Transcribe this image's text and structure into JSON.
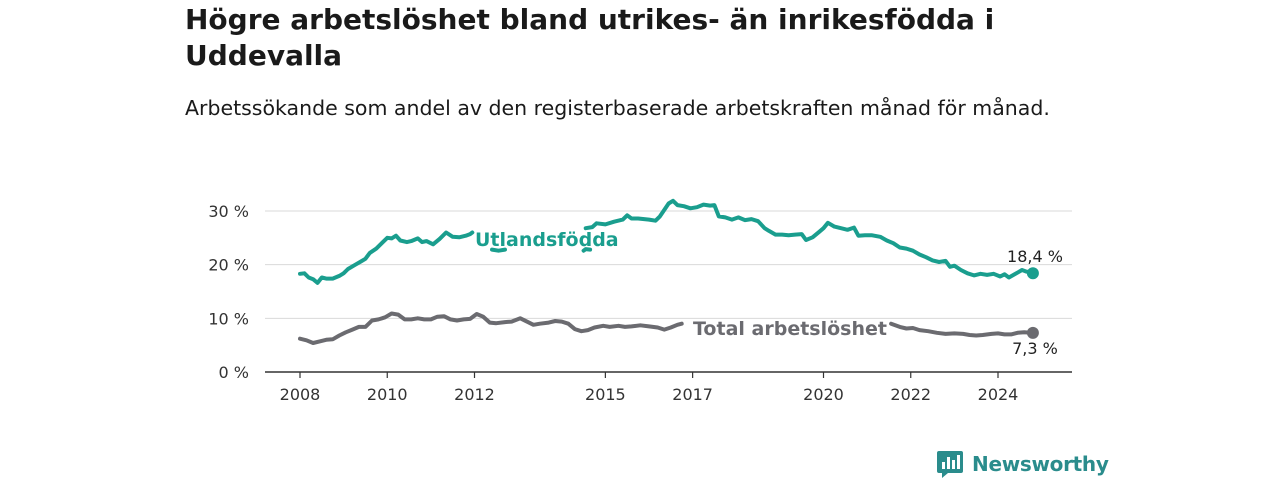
{
  "title": "Högre arbetslöshet bland utrikes- än inrikesfödda i Uddevalla",
  "subtitle": "Arbetssökande som andel av den registerbaserade arbetskraften månad för månad.",
  "brand": {
    "name": "Newsworthy",
    "icon": "newsworthy-chart-logo-icon",
    "color": "#2a8c8c"
  },
  "chart_data": {
    "type": "line",
    "title": "Högre arbetslöshet bland utrikes- än inrikesfödda i Uddevalla",
    "subtitle": "Arbetssökande som andel av den registerbaserade arbetskraften månad för månad.",
    "xlabel": "",
    "ylabel": "",
    "xlim": [
      2007.75,
      2025.6
    ],
    "ylim": [
      0,
      30
    ],
    "y_ticks": [
      0,
      10,
      20,
      30
    ],
    "y_tick_labels": [
      "0 %",
      "10 %",
      "20 %",
      "30 %"
    ],
    "x_ticks": [
      2008,
      2010,
      2012,
      2015,
      2017,
      2020,
      2022,
      2024
    ],
    "x_tick_labels": [
      "2008",
      "2010",
      "2012",
      "2015",
      "2017",
      "2020",
      "2022",
      "2024"
    ],
    "grid": true,
    "legend": "inline labels",
    "series": [
      {
        "name": "Utlandsfödda",
        "color": "#1a9e8e",
        "end_label": "18,4 %",
        "points": [
          [
            2008.0,
            18.3
          ],
          [
            2008.1,
            18.4
          ],
          [
            2008.2,
            17.6
          ],
          [
            2008.3,
            17.3
          ],
          [
            2008.4,
            16.6
          ],
          [
            2008.5,
            17.6
          ],
          [
            2008.6,
            17.4
          ],
          [
            2008.75,
            17.4
          ],
          [
            2008.9,
            17.9
          ],
          [
            2009.0,
            18.4
          ],
          [
            2009.1,
            19.2
          ],
          [
            2009.25,
            19.9
          ],
          [
            2009.4,
            20.6
          ],
          [
            2009.5,
            21.1
          ],
          [
            2009.6,
            22.2
          ],
          [
            2009.75,
            23.0
          ],
          [
            2009.9,
            24.2
          ],
          [
            2010.0,
            25.0
          ],
          [
            2010.1,
            24.9
          ],
          [
            2010.2,
            25.4
          ],
          [
            2010.3,
            24.5
          ],
          [
            2010.45,
            24.2
          ],
          [
            2010.55,
            24.4
          ],
          [
            2010.7,
            24.9
          ],
          [
            2010.8,
            24.2
          ],
          [
            2010.9,
            24.4
          ],
          [
            2011.05,
            23.8
          ],
          [
            2011.2,
            24.8
          ],
          [
            2011.35,
            26.0
          ],
          [
            2011.5,
            25.2
          ],
          [
            2011.65,
            25.1
          ],
          [
            2011.8,
            25.4
          ],
          [
            2011.9,
            25.7
          ],
          [
            2011.95,
            26.0
          ]
        ],
        "points_segment_2": [
          [
            2012.4,
            22.8
          ],
          [
            2012.55,
            22.6
          ],
          [
            2012.7,
            22.8
          ]
        ],
        "points_segment_3": [
          [
            2014.5,
            22.6
          ],
          [
            2014.55,
            22.9
          ],
          [
            2014.65,
            22.8
          ]
        ],
        "points_segment_4": [
          [
            2014.55,
            26.8
          ],
          [
            2014.7,
            27.0
          ],
          [
            2014.8,
            27.7
          ],
          [
            2015.0,
            27.5
          ],
          [
            2015.2,
            28.0
          ],
          [
            2015.4,
            28.4
          ],
          [
            2015.5,
            29.2
          ],
          [
            2015.6,
            28.6
          ],
          [
            2015.75,
            28.6
          ],
          [
            2016.0,
            28.4
          ],
          [
            2016.15,
            28.2
          ],
          [
            2016.25,
            29.0
          ],
          [
            2016.35,
            30.2
          ],
          [
            2016.45,
            31.4
          ],
          [
            2016.55,
            31.9
          ],
          [
            2016.65,
            31.1
          ],
          [
            2016.8,
            30.9
          ],
          [
            2016.95,
            30.5
          ],
          [
            2017.1,
            30.7
          ],
          [
            2017.25,
            31.2
          ],
          [
            2017.4,
            31.0
          ],
          [
            2017.5,
            31.1
          ],
          [
            2017.6,
            29.0
          ],
          [
            2017.75,
            28.8
          ],
          [
            2017.9,
            28.4
          ],
          [
            2018.05,
            28.8
          ],
          [
            2018.2,
            28.3
          ],
          [
            2018.35,
            28.5
          ],
          [
            2018.5,
            28.1
          ],
          [
            2018.65,
            26.8
          ],
          [
            2018.75,
            26.3
          ],
          [
            2018.9,
            25.6
          ],
          [
            2019.05,
            25.6
          ],
          [
            2019.2,
            25.5
          ],
          [
            2019.35,
            25.6
          ],
          [
            2019.5,
            25.7
          ],
          [
            2019.6,
            24.6
          ],
          [
            2019.75,
            25.1
          ],
          [
            2019.9,
            26.1
          ],
          [
            2020.0,
            26.8
          ],
          [
            2020.1,
            27.8
          ],
          [
            2020.25,
            27.1
          ],
          [
            2020.4,
            26.8
          ],
          [
            2020.55,
            26.5
          ],
          [
            2020.7,
            26.9
          ],
          [
            2020.8,
            25.4
          ],
          [
            2020.95,
            25.5
          ],
          [
            2021.1,
            25.5
          ],
          [
            2021.3,
            25.2
          ],
          [
            2021.45,
            24.5
          ],
          [
            2021.6,
            24.0
          ],
          [
            2021.75,
            23.2
          ],
          [
            2021.9,
            23.0
          ],
          [
            2022.05,
            22.6
          ],
          [
            2022.2,
            21.9
          ],
          [
            2022.35,
            21.4
          ],
          [
            2022.5,
            20.8
          ],
          [
            2022.65,
            20.5
          ],
          [
            2022.8,
            20.7
          ],
          [
            2022.9,
            19.6
          ],
          [
            2023.0,
            19.8
          ],
          [
            2023.15,
            19.0
          ],
          [
            2023.3,
            18.4
          ],
          [
            2023.45,
            18.0
          ],
          [
            2023.6,
            18.3
          ],
          [
            2023.75,
            18.1
          ],
          [
            2023.9,
            18.3
          ],
          [
            2024.05,
            17.8
          ],
          [
            2024.15,
            18.2
          ],
          [
            2024.25,
            17.6
          ],
          [
            2024.4,
            18.3
          ],
          [
            2024.55,
            19.0
          ],
          [
            2024.65,
            18.7
          ],
          [
            2024.75,
            18.6
          ],
          [
            2024.8,
            18.4
          ]
        ]
      },
      {
        "name": "Total arbetslöshet",
        "color": "#6b6b70",
        "end_label": "7,3 %",
        "points": [
          [
            2008.0,
            6.2
          ],
          [
            2008.15,
            5.9
          ],
          [
            2008.3,
            5.4
          ],
          [
            2008.45,
            5.7
          ],
          [
            2008.6,
            6.0
          ],
          [
            2008.75,
            6.1
          ],
          [
            2008.9,
            6.8
          ],
          [
            2009.05,
            7.4
          ],
          [
            2009.2,
            7.9
          ],
          [
            2009.35,
            8.4
          ],
          [
            2009.5,
            8.4
          ],
          [
            2009.65,
            9.6
          ],
          [
            2009.8,
            9.8
          ],
          [
            2009.95,
            10.2
          ],
          [
            2010.1,
            10.9
          ],
          [
            2010.25,
            10.7
          ],
          [
            2010.4,
            9.8
          ],
          [
            2010.55,
            9.8
          ],
          [
            2010.7,
            10.0
          ],
          [
            2010.85,
            9.8
          ],
          [
            2011.0,
            9.8
          ],
          [
            2011.15,
            10.3
          ],
          [
            2011.3,
            10.4
          ],
          [
            2011.45,
            9.8
          ],
          [
            2011.6,
            9.6
          ],
          [
            2011.75,
            9.8
          ],
          [
            2011.9,
            9.9
          ],
          [
            2012.05,
            10.8
          ],
          [
            2012.2,
            10.3
          ],
          [
            2012.35,
            9.2
          ],
          [
            2012.5,
            9.1
          ],
          [
            2012.7,
            9.3
          ],
          [
            2012.85,
            9.4
          ],
          [
            2013.05,
            10.0
          ],
          [
            2013.2,
            9.4
          ],
          [
            2013.35,
            8.8
          ],
          [
            2013.5,
            9.0
          ],
          [
            2013.7,
            9.2
          ],
          [
            2013.85,
            9.5
          ],
          [
            2014.0,
            9.4
          ],
          [
            2014.15,
            9.0
          ],
          [
            2014.3,
            8.0
          ],
          [
            2014.45,
            7.6
          ],
          [
            2014.6,
            7.8
          ],
          [
            2014.75,
            8.3
          ],
          [
            2014.95,
            8.6
          ],
          [
            2015.1,
            8.4
          ],
          [
            2015.3,
            8.6
          ],
          [
            2015.45,
            8.4
          ],
          [
            2015.6,
            8.5
          ],
          [
            2015.8,
            8.7
          ],
          [
            2016.0,
            8.5
          ],
          [
            2016.2,
            8.3
          ],
          [
            2016.35,
            7.9
          ],
          [
            2016.5,
            8.3
          ],
          [
            2016.65,
            8.8
          ],
          [
            2016.75,
            9.0
          ]
        ],
        "points_segment_2": [
          [
            2021.55,
            9.0
          ],
          [
            2021.75,
            8.4
          ],
          [
            2021.9,
            8.1
          ],
          [
            2022.05,
            8.2
          ],
          [
            2022.2,
            7.8
          ],
          [
            2022.4,
            7.6
          ],
          [
            2022.6,
            7.3
          ],
          [
            2022.8,
            7.1
          ],
          [
            2023.0,
            7.2
          ],
          [
            2023.2,
            7.1
          ],
          [
            2023.35,
            6.9
          ],
          [
            2023.5,
            6.8
          ],
          [
            2023.65,
            6.9
          ],
          [
            2023.85,
            7.1
          ],
          [
            2024.0,
            7.2
          ],
          [
            2024.15,
            7.0
          ],
          [
            2024.3,
            7.0
          ],
          [
            2024.45,
            7.3
          ],
          [
            2024.6,
            7.4
          ],
          [
            2024.75,
            7.3
          ],
          [
            2024.8,
            7.3
          ]
        ]
      }
    ]
  }
}
